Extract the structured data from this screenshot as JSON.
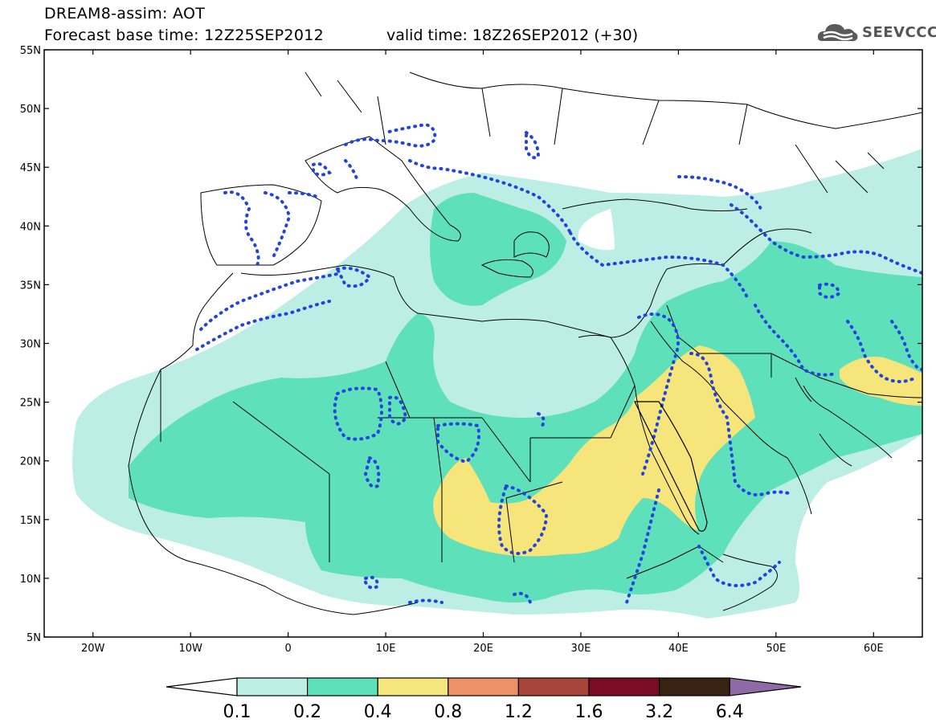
{
  "header": {
    "title_line1": "DREAM8-assim: AOT",
    "title_line2": "Forecast base time: 12Z25SEP2012",
    "valid_time": "valid time: 18Z26SEP2012 (+30)",
    "logo_text": "SEEVCCC",
    "logo_icon": "cloud-icon"
  },
  "map": {
    "lon_range": [
      -25,
      65
    ],
    "lat_range": [
      5,
      55
    ],
    "y_ticks": [
      {
        "lat": 55,
        "label": "55N"
      },
      {
        "lat": 50,
        "label": "50N"
      },
      {
        "lat": 45,
        "label": "45N"
      },
      {
        "lat": 40,
        "label": "40N"
      },
      {
        "lat": 35,
        "label": "35N"
      },
      {
        "lat": 30,
        "label": "30N"
      },
      {
        "lat": 25,
        "label": "25N"
      },
      {
        "lat": 20,
        "label": "20N"
      },
      {
        "lat": 15,
        "label": "15N"
      },
      {
        "lat": 10,
        "label": "10N"
      },
      {
        "lat": 5,
        "label": "5N"
      }
    ],
    "x_ticks": [
      {
        "lon": -20,
        "label": "20W"
      },
      {
        "lon": -10,
        "label": "10W"
      },
      {
        "lon": 0,
        "label": "0"
      },
      {
        "lon": 10,
        "label": "10E"
      },
      {
        "lon": 20,
        "label": "20E"
      },
      {
        "lon": 30,
        "label": "30E"
      },
      {
        "lon": 40,
        "label": "40E"
      },
      {
        "lon": 50,
        "label": "50E"
      },
      {
        "lon": 60,
        "label": "60E"
      }
    ],
    "contour_color": "#2244dd",
    "coast_color": "#000000"
  },
  "colorbar": {
    "levels": [
      "0.1",
      "0.2",
      "0.4",
      "0.8",
      "1.2",
      "1.6",
      "3.2",
      "6.4"
    ],
    "colors": [
      "#ffffff",
      "#bdeee5",
      "#5ee0bb",
      "#f5e57a",
      "#ec9168",
      "#a8453a",
      "#7a0d25",
      "#3a2213",
      "#8e6aa6"
    ]
  }
}
